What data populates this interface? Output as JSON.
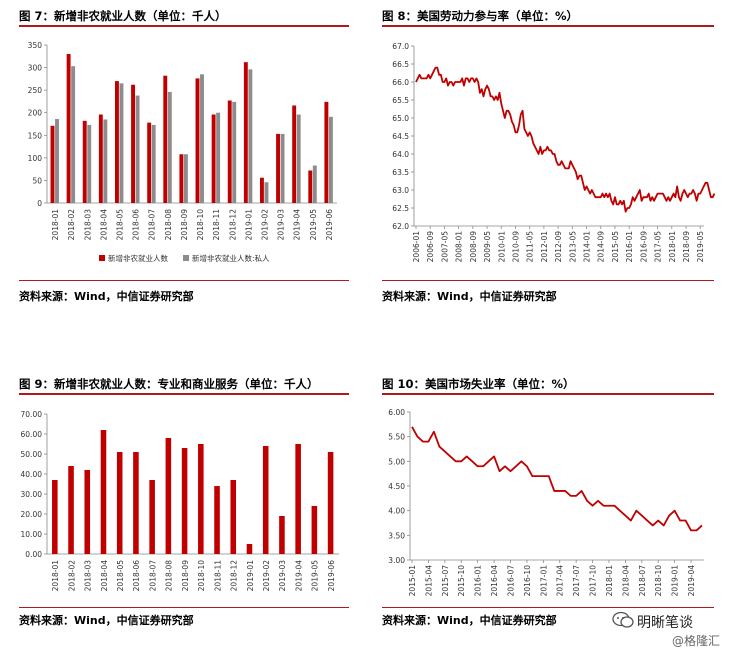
{
  "colors": {
    "accent": "#b01a1f",
    "bar1": "#c00000",
    "bar2": "#8c8c8c",
    "line": "#c00000"
  },
  "watermark": {
    "brand": "明晰笔谈",
    "handle": "@格隆汇",
    "icon": "wechat-bubble-icon"
  },
  "charts": [
    {
      "type": "bar",
      "title": "图 7：新增非农就业人数（单位：千人）",
      "source": "资料来源：Wind，中信证券研究部",
      "categories": [
        "2018-01",
        "2018-02",
        "2018-03",
        "2018-04",
        "2018-05",
        "2018-06",
        "2018-07",
        "2018-08",
        "2018-09",
        "2018-10",
        "2018-11",
        "2018-12",
        "2019-01",
        "2019-02",
        "2019-03",
        "2019-04",
        "2019-05",
        "2019-06"
      ],
      "series": [
        {
          "name": "新增非农就业人数",
          "values": [
            171,
            330,
            182,
            196,
            270,
            262,
            178,
            282,
            108,
            276,
            196,
            227,
            312,
            56,
            153,
            216,
            72,
            224
          ]
        },
        {
          "name": "新增非农就业人数:私人",
          "values": [
            186,
            303,
            173,
            185,
            265,
            238,
            173,
            246,
            108,
            285,
            200,
            224,
            296,
            46,
            153,
            196,
            83,
            191
          ]
        }
      ],
      "ylim": [
        0,
        350
      ],
      "yticks": [
        "0",
        "50",
        "100",
        "150",
        "200",
        "250",
        "300",
        "350"
      ],
      "legend_position": "bottom"
    },
    {
      "type": "line",
      "title": "图 8：美国劳动力参与率（单位：%）",
      "source": "资料来源：Wind，中信证券研究部",
      "xticks": [
        "2006-01",
        "2006-09",
        "2007-05",
        "2008-01",
        "2008-09",
        "2009-05",
        "2010-01",
        "2010-09",
        "2011-05",
        "2012-01",
        "2012-09",
        "2013-05",
        "2014-01",
        "2014-09",
        "2015-05",
        "2016-01",
        "2016-09",
        "2017-05",
        "2018-01",
        "2018-09",
        "2019-05"
      ],
      "yticks": [
        "62.0",
        "62.5",
        "63.0",
        "63.5",
        "64.0",
        "64.5",
        "65.0",
        "65.5",
        "66.0",
        "66.5",
        "67.0"
      ],
      "ylim": [
        62.0,
        67.0
      ],
      "x_start": "2006-01",
      "x_end": "2019-06",
      "values": [
        66.0,
        66.1,
        66.2,
        66.1,
        66.1,
        66.1,
        66.1,
        66.2,
        66.1,
        66.2,
        66.3,
        66.4,
        66.4,
        66.2,
        66.2,
        66.0,
        66.0,
        66.1,
        65.9,
        66.0,
        66.0,
        65.9,
        66.0,
        66.0,
        66.0,
        66.0,
        66.1,
        65.9,
        66.1,
        66.1,
        66.0,
        66.1,
        66.1,
        66.0,
        66.1,
        66.0,
        65.7,
        65.8,
        65.6,
        65.8,
        65.9,
        65.8,
        65.6,
        65.6,
        65.5,
        65.6,
        65.5,
        65.7,
        65.4,
        65.2,
        65.0,
        65.2,
        65.2,
        65.1,
        64.9,
        64.8,
        64.6,
        64.6,
        64.8,
        65.1,
        65.2,
        64.7,
        64.6,
        64.5,
        64.6,
        64.5,
        64.3,
        64.2,
        64.1,
        64.0,
        64.2,
        64.0,
        64.1,
        64.1,
        64.2,
        64.1,
        64.1,
        64.0,
        64.0,
        63.8,
        63.7,
        63.7,
        63.8,
        63.7,
        63.6,
        63.6,
        63.6,
        63.8,
        63.7,
        63.6,
        63.5,
        63.3,
        63.4,
        63.4,
        63.2,
        63.0,
        63.1,
        63.0,
        62.9,
        63.0,
        62.9,
        62.8,
        62.8,
        62.8,
        62.8,
        62.9,
        62.8,
        62.9,
        62.8,
        62.9,
        62.7,
        62.6,
        62.8,
        62.6,
        62.6,
        62.7,
        62.6,
        62.7,
        62.4,
        62.5,
        62.5,
        62.6,
        62.8,
        62.7,
        62.8,
        62.9,
        63.0,
        62.7,
        62.8,
        62.8,
        62.8,
        62.9,
        62.7,
        62.8,
        62.7,
        62.8,
        62.9,
        62.9,
        62.9,
        62.9,
        62.8,
        62.7,
        62.8,
        62.7,
        62.8,
        62.9,
        62.8,
        63.1,
        62.8,
        62.7,
        62.9,
        63.0,
        62.9,
        62.8,
        62.9,
        62.9,
        63.0,
        62.9,
        62.7,
        62.9,
        62.9,
        63.0,
        63.1,
        63.2,
        63.2,
        63.0,
        62.8,
        62.8,
        62.9
      ]
    },
    {
      "type": "bar",
      "title": "图 9：新增非农就业人数：专业和商业服务（单位：千人）",
      "source": "资料来源：Wind，中信证券研究部",
      "categories": [
        "2018-01",
        "2018-02",
        "2018-03",
        "2018-04",
        "2018-05",
        "2018-06",
        "2018-07",
        "2018-08",
        "2018-09",
        "2018-10",
        "2018-11",
        "2018-12",
        "2019-01",
        "2019-02",
        "2019-03",
        "2019-04",
        "2019-05",
        "2019-06"
      ],
      "values": [
        37,
        44,
        42,
        62,
        51,
        51,
        37,
        58,
        53,
        55,
        34,
        37,
        5,
        54,
        19,
        55,
        24,
        51
      ],
      "ylim": [
        0,
        70
      ],
      "yticks": [
        "0.00",
        "10.00",
        "20.00",
        "30.00",
        "40.00",
        "50.00",
        "60.00",
        "70.00"
      ]
    },
    {
      "type": "line",
      "title": "图 10：美国市场失业率（单位：%）",
      "source": "资料来源：Wind，中信证券研究部",
      "xticks": [
        "2015-01",
        "2015-04",
        "2015-07",
        "2015-10",
        "2016-01",
        "2016-04",
        "2016-07",
        "2016-10",
        "2017-01",
        "2017-04",
        "2017-07",
        "2017-10",
        "2018-01",
        "2018-04",
        "2018-07",
        "2018-10",
        "2019-01",
        "2019-04"
      ],
      "yticks": [
        "3.00",
        "3.50",
        "4.00",
        "4.50",
        "5.00",
        "5.50",
        "6.00"
      ],
      "ylim": [
        3.0,
        6.0
      ],
      "x_start": "2015-01",
      "x_end": "2019-06",
      "values": [
        5.7,
        5.5,
        5.4,
        5.4,
        5.6,
        5.3,
        5.2,
        5.1,
        5.0,
        5.0,
        5.1,
        5.0,
        4.9,
        4.9,
        5.0,
        5.1,
        4.8,
        4.9,
        4.8,
        4.9,
        5.0,
        4.9,
        4.7,
        4.7,
        4.7,
        4.7,
        4.4,
        4.4,
        4.4,
        4.3,
        4.3,
        4.4,
        4.2,
        4.1,
        4.2,
        4.1,
        4.1,
        4.1,
        4.0,
        3.9,
        3.8,
        4.0,
        3.9,
        3.8,
        3.7,
        3.8,
        3.7,
        3.9,
        4.0,
        3.8,
        3.8,
        3.6,
        3.6,
        3.7
      ]
    }
  ]
}
